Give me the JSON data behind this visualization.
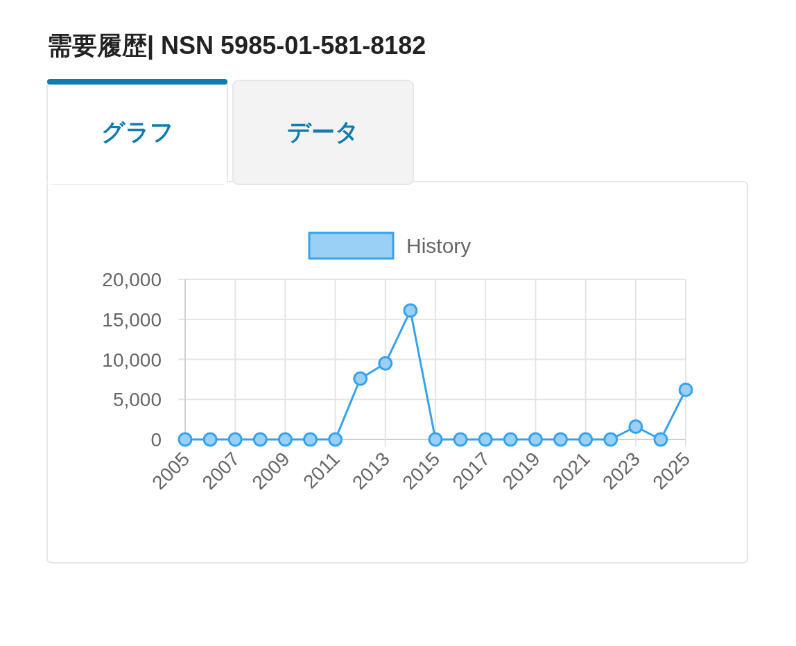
{
  "chart_data": {
    "type": "line",
    "title": "需要履歴| NSN 5985-01-581-8182",
    "annotations": [
      "グラフ",
      "データ"
    ],
    "x": [
      2005,
      2006,
      2007,
      2008,
      2009,
      2010,
      2011,
      2012,
      2013,
      2014,
      2015,
      2016,
      2017,
      2018,
      2019,
      2020,
      2021,
      2022,
      2023,
      2024,
      2025
    ],
    "series": [
      {
        "name": "History",
        "color": "#36a2eb",
        "values": [
          0,
          0,
          0,
          0,
          0,
          0,
          0,
          7600,
          9500,
          16100,
          0,
          0,
          0,
          0,
          0,
          0,
          0,
          0,
          1600,
          0,
          6200
        ]
      }
    ],
    "xlim": [
      2005,
      2025
    ],
    "xticks": [
      2005,
      2007,
      2009,
      2011,
      2013,
      2015,
      2017,
      2019,
      2021,
      2023,
      2025
    ],
    "ylim": [
      0,
      20000
    ],
    "yticks": [
      {
        "value": 0,
        "label": "0"
      },
      {
        "value": 5000,
        "label": "5,000"
      },
      {
        "value": 10000,
        "label": "10,000"
      },
      {
        "value": 15000,
        "label": "15,000"
      },
      {
        "value": 20000,
        "label": "20,000"
      }
    ],
    "grid": true,
    "legend": "top",
    "marker": "circle"
  }
}
